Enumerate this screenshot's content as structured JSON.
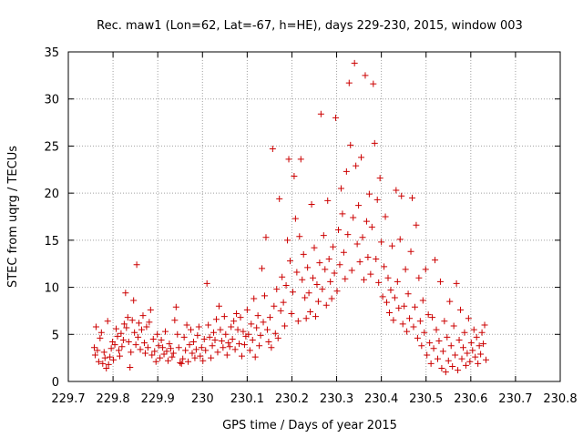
{
  "chart_data": {
    "type": "scatter",
    "title": "Rec. maw1 (Lon=62, Lat=-67, h=HE), days 229-230, 2015, window 003",
    "xlabel": "GPS time / Days of year 2015",
    "ylabel": "STEC from uqrg / TECUs",
    "xlim": [
      229.7,
      230.8
    ],
    "ylim": [
      0,
      35
    ],
    "x_ticks": [
      "229.7",
      "229.8",
      "229.9",
      "230",
      "230.1",
      "230.2",
      "230.3",
      "230.4",
      "230.5",
      "230.6",
      "230.7",
      "230.8"
    ],
    "y_ticks": [
      "0",
      "5",
      "10",
      "15",
      "20",
      "25",
      "30",
      "35"
    ],
    "grid": true,
    "marker": "+",
    "colors": {
      "series": "#cc0000",
      "grid": "#a0a0a0",
      "axes": "#000000"
    },
    "series": [
      {
        "points": [
          [
            229.758,
            3.6
          ],
          [
            229.76,
            2.8
          ],
          [
            229.762,
            5.8
          ],
          [
            229.765,
            3.3
          ],
          [
            229.768,
            2.1
          ],
          [
            229.771,
            4.6
          ],
          [
            229.774,
            5.2
          ],
          [
            229.777,
            1.9
          ],
          [
            229.78,
            3.1
          ],
          [
            229.782,
            2.5
          ],
          [
            229.785,
            1.4
          ],
          [
            229.788,
            6.4
          ],
          [
            229.79,
            1.8
          ],
          [
            229.793,
            2.6
          ],
          [
            229.796,
            3.5
          ],
          [
            229.799,
            4.2
          ],
          [
            229.801,
            2.3
          ],
          [
            229.804,
            3.9
          ],
          [
            229.807,
            5.6
          ],
          [
            229.81,
            4.8
          ],
          [
            229.813,
            3.3
          ],
          [
            229.815,
            2.7
          ],
          [
            229.818,
            5.1
          ],
          [
            229.82,
            3.7
          ],
          [
            229.823,
            4.4
          ],
          [
            229.825,
            6.1
          ],
          [
            229.828,
            9.4
          ],
          [
            229.83,
            5.7
          ],
          [
            229.833,
            6.8
          ],
          [
            229.835,
            4.2
          ],
          [
            229.838,
            1.5
          ],
          [
            229.84,
            3.1
          ],
          [
            229.843,
            6.5
          ],
          [
            229.846,
            8.6
          ],
          [
            229.848,
            5.2
          ],
          [
            229.851,
            3.9
          ],
          [
            229.853,
            12.4
          ],
          [
            229.856,
            4.7
          ],
          [
            229.858,
            6.2
          ],
          [
            229.861,
            3.4
          ],
          [
            229.864,
            5.5
          ],
          [
            229.867,
            7.0
          ],
          [
            229.87,
            4.1
          ],
          [
            229.872,
            3.0
          ],
          [
            229.875,
            5.8
          ],
          [
            229.878,
            3.6
          ],
          [
            229.881,
            6.3
          ],
          [
            229.884,
            7.6
          ],
          [
            229.887,
            2.8
          ],
          [
            229.89,
            4.5
          ],
          [
            229.893,
            3.2
          ],
          [
            229.896,
            2.1
          ],
          [
            229.899,
            5.0
          ],
          [
            229.902,
            3.8
          ],
          [
            229.905,
            2.5
          ],
          [
            229.908,
            4.4
          ],
          [
            229.911,
            3.6
          ],
          [
            229.914,
            2.9
          ],
          [
            229.917,
            5.3
          ],
          [
            229.92,
            3.2
          ],
          [
            229.923,
            2.2
          ],
          [
            229.926,
            4.0
          ],
          [
            229.929,
            3.5
          ],
          [
            229.932,
            2.6
          ],
          [
            229.935,
            3.0
          ],
          [
            229.938,
            6.5
          ],
          [
            229.941,
            7.9
          ],
          [
            229.944,
            5.0
          ],
          [
            229.947,
            3.6
          ],
          [
            229.95,
            2.0
          ],
          [
            229.953,
            1.9
          ],
          [
            229.956,
            2.4
          ],
          [
            229.959,
            4.7
          ],
          [
            229.962,
            3.3
          ],
          [
            229.965,
            6.0
          ],
          [
            229.968,
            2.1
          ],
          [
            229.971,
            3.9
          ],
          [
            229.974,
            5.5
          ],
          [
            229.977,
            3.0
          ],
          [
            229.98,
            4.2
          ],
          [
            229.983,
            2.5
          ],
          [
            229.986,
            3.4
          ],
          [
            229.989,
            4.9
          ],
          [
            229.992,
            5.8
          ],
          [
            229.995,
            2.7
          ],
          [
            229.998,
            3.6
          ],
          [
            230.001,
            2.2
          ],
          [
            230.004,
            4.5
          ],
          [
            230.007,
            3.3
          ],
          [
            230.01,
            10.4
          ],
          [
            230.013,
            6.0
          ],
          [
            230.016,
            4.7
          ],
          [
            230.019,
            2.5
          ],
          [
            230.022,
            3.8
          ],
          [
            230.025,
            5.2
          ],
          [
            230.028,
            4.4
          ],
          [
            230.031,
            6.6
          ],
          [
            230.034,
            3.1
          ],
          [
            230.037,
            8.0
          ],
          [
            230.04,
            5.5
          ],
          [
            230.043,
            4.3
          ],
          [
            230.046,
            3.6
          ],
          [
            230.049,
            6.9
          ],
          [
            230.052,
            5.0
          ],
          [
            230.055,
            2.8
          ],
          [
            230.058,
            4.1
          ],
          [
            230.061,
            3.7
          ],
          [
            230.064,
            5.8
          ],
          [
            230.067,
            4.5
          ],
          [
            230.07,
            6.4
          ],
          [
            230.073,
            3.4
          ],
          [
            230.076,
            7.2
          ],
          [
            230.079,
            5.5
          ],
          [
            230.082,
            4.0
          ],
          [
            230.085,
            6.8
          ],
          [
            230.088,
            2.7
          ],
          [
            230.091,
            5.3
          ],
          [
            230.094,
            3.9
          ],
          [
            230.097,
            4.8
          ],
          [
            230.1,
            7.6
          ],
          [
            230.103,
            5.0
          ],
          [
            230.106,
            3.3
          ],
          [
            230.109,
            6.1
          ],
          [
            230.112,
            4.4
          ],
          [
            230.115,
            8.8
          ],
          [
            230.118,
            2.6
          ],
          [
            230.121,
            5.7
          ],
          [
            230.124,
            7.0
          ],
          [
            230.127,
            3.8
          ],
          [
            230.13,
            4.9
          ],
          [
            230.133,
            12.0
          ],
          [
            230.136,
            6.3
          ],
          [
            230.139,
            9.1
          ],
          [
            230.142,
            15.3
          ],
          [
            230.145,
            5.5
          ],
          [
            230.148,
            4.2
          ],
          [
            230.151,
            6.8
          ],
          [
            230.154,
            3.6
          ],
          [
            230.157,
            24.7
          ],
          [
            230.16,
            8.0
          ],
          [
            230.163,
            5.1
          ],
          [
            230.166,
            9.8
          ],
          [
            230.169,
            4.6
          ],
          [
            230.172,
            19.4
          ],
          [
            230.175,
            7.5
          ],
          [
            230.178,
            11.1
          ],
          [
            230.181,
            8.4
          ],
          [
            230.184,
            5.9
          ],
          [
            230.187,
            10.2
          ],
          [
            230.19,
            15.0
          ],
          [
            230.193,
            23.6
          ],
          [
            230.196,
            12.8
          ],
          [
            230.199,
            7.2
          ],
          [
            230.202,
            9.5
          ],
          [
            230.205,
            21.8
          ],
          [
            230.208,
            17.3
          ],
          [
            230.211,
            11.6
          ],
          [
            230.214,
            6.4
          ],
          [
            230.217,
            15.4
          ],
          [
            230.22,
            23.6
          ],
          [
            230.223,
            10.8
          ],
          [
            230.226,
            13.5
          ],
          [
            230.229,
            8.9
          ],
          [
            230.232,
            6.7
          ],
          [
            230.235,
            12.1
          ],
          [
            230.238,
            9.4
          ],
          [
            230.241,
            7.4
          ],
          [
            230.244,
            18.8
          ],
          [
            230.247,
            11.0
          ],
          [
            230.25,
            14.2
          ],
          [
            230.253,
            6.9
          ],
          [
            230.256,
            10.3
          ],
          [
            230.259,
            8.5
          ],
          [
            230.262,
            12.6
          ],
          [
            230.265,
            28.4
          ],
          [
            230.268,
            9.8
          ],
          [
            230.271,
            15.5
          ],
          [
            230.274,
            11.9
          ],
          [
            230.277,
            8.1
          ],
          [
            230.28,
            19.2
          ],
          [
            230.283,
            13.0
          ],
          [
            230.286,
            10.6
          ],
          [
            230.289,
            8.8
          ],
          [
            230.292,
            14.3
          ],
          [
            230.295,
            11.5
          ],
          [
            230.298,
            28.0
          ],
          [
            230.301,
            9.6
          ],
          [
            230.304,
            16.1
          ],
          [
            230.307,
            12.4
          ],
          [
            230.31,
            20.5
          ],
          [
            230.313,
            17.8
          ],
          [
            230.316,
            13.7
          ],
          [
            230.319,
            10.9
          ],
          [
            230.322,
            22.3
          ],
          [
            230.325,
            15.6
          ],
          [
            230.328,
            31.7
          ],
          [
            230.331,
            25.1
          ],
          [
            230.334,
            11.8
          ],
          [
            230.337,
            17.4
          ],
          [
            230.34,
            33.8
          ],
          [
            230.343,
            22.9
          ],
          [
            230.346,
            14.6
          ],
          [
            230.349,
            18.7
          ],
          [
            230.352,
            12.7
          ],
          [
            230.355,
            23.8
          ],
          [
            230.358,
            15.3
          ],
          [
            230.361,
            10.8
          ],
          [
            230.364,
            32.5
          ],
          [
            230.367,
            17.0
          ],
          [
            230.37,
            13.2
          ],
          [
            230.373,
            19.9
          ],
          [
            230.376,
            11.4
          ],
          [
            230.379,
            16.4
          ],
          [
            230.382,
            31.6
          ],
          [
            230.385,
            25.3
          ],
          [
            230.388,
            13.0
          ],
          [
            230.391,
            19.3
          ],
          [
            230.394,
            10.5
          ],
          [
            230.397,
            21.6
          ],
          [
            230.4,
            14.8
          ],
          [
            230.403,
            9.0
          ],
          [
            230.406,
            12.2
          ],
          [
            230.409,
            17.5
          ],
          [
            230.412,
            8.4
          ],
          [
            230.415,
            11.0
          ],
          [
            230.418,
            7.3
          ],
          [
            230.421,
            9.7
          ],
          [
            230.424,
            14.4
          ],
          [
            230.427,
            6.5
          ],
          [
            230.43,
            8.9
          ],
          [
            230.433,
            20.3
          ],
          [
            230.436,
            10.6
          ],
          [
            230.439,
            7.8
          ],
          [
            230.442,
            15.1
          ],
          [
            230.445,
            19.7
          ],
          [
            230.448,
            6.1
          ],
          [
            230.451,
            8.0
          ],
          [
            230.454,
            11.9
          ],
          [
            230.457,
            5.3
          ],
          [
            230.46,
            9.3
          ],
          [
            230.463,
            6.7
          ],
          [
            230.466,
            13.8
          ],
          [
            230.469,
            19.5
          ],
          [
            230.472,
            5.8
          ],
          [
            230.475,
            7.9
          ],
          [
            230.478,
            16.6
          ],
          [
            230.481,
            4.6
          ],
          [
            230.484,
            11.0
          ],
          [
            230.487,
            6.4
          ],
          [
            230.49,
            3.8
          ],
          [
            230.493,
            8.6
          ],
          [
            230.496,
            5.2
          ],
          [
            230.499,
            11.9
          ],
          [
            230.502,
            2.8
          ],
          [
            230.505,
            7.1
          ],
          [
            230.508,
            4.1
          ],
          [
            230.511,
            1.9
          ],
          [
            230.514,
            6.8
          ],
          [
            230.517,
            3.5
          ],
          [
            230.52,
            12.9
          ],
          [
            230.523,
            5.5
          ],
          [
            230.526,
            2.4
          ],
          [
            230.529,
            4.3
          ],
          [
            230.532,
            10.6
          ],
          [
            230.535,
            1.4
          ],
          [
            230.538,
            3.2
          ],
          [
            230.541,
            6.4
          ],
          [
            230.544,
            1.0
          ],
          [
            230.547,
            4.7
          ],
          [
            230.55,
            2.2
          ],
          [
            230.553,
            8.5
          ],
          [
            230.556,
            3.8
          ],
          [
            230.559,
            1.6
          ],
          [
            230.562,
            5.9
          ],
          [
            230.565,
            2.8
          ],
          [
            230.568,
            10.4
          ],
          [
            230.571,
            1.2
          ],
          [
            230.574,
            4.4
          ],
          [
            230.577,
            7.6
          ],
          [
            230.58,
            2.4
          ],
          [
            230.583,
            3.6
          ],
          [
            230.586,
            5.2
          ],
          [
            230.589,
            1.7
          ],
          [
            230.592,
            3.0
          ],
          [
            230.595,
            6.7
          ],
          [
            230.598,
            2.1
          ],
          [
            230.601,
            4.1
          ],
          [
            230.604,
            3.3
          ],
          [
            230.607,
            5.5
          ],
          [
            230.61,
            2.6
          ],
          [
            230.613,
            4.7
          ],
          [
            230.616,
            1.9
          ],
          [
            230.619,
            3.8
          ],
          [
            230.622,
            2.9
          ],
          [
            230.625,
            5.2
          ],
          [
            230.628,
            4.0
          ],
          [
            230.631,
            6.0
          ],
          [
            230.634,
            2.3
          ]
        ]
      }
    ]
  }
}
